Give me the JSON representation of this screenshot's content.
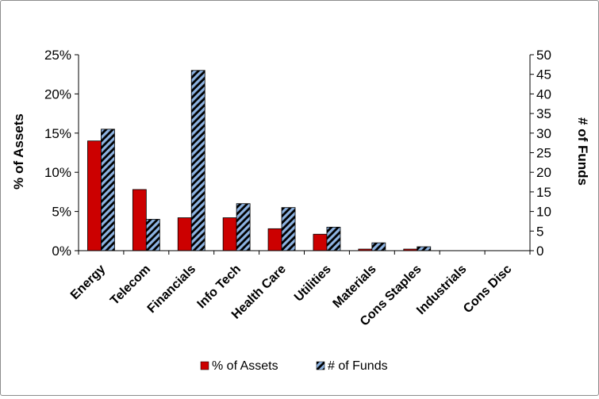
{
  "chart_data": {
    "type": "bar",
    "categories": [
      "Energy",
      "Telecom",
      "Financials",
      "Info Tech",
      "Health Care",
      "Utilities",
      "Materials",
      "Cons Staples",
      "Industrials",
      "Cons Disc"
    ],
    "series": [
      {
        "name": "% of Assets",
        "axis": "left",
        "values": [
          14.0,
          7.8,
          4.2,
          4.2,
          2.8,
          2.1,
          0.2,
          0.2,
          0,
          0
        ],
        "color": "#cc0000",
        "pattern": "solid"
      },
      {
        "name": "# of Funds",
        "axis": "right",
        "values": [
          31,
          8,
          46,
          12,
          11,
          6,
          2,
          1,
          0,
          0
        ],
        "color": "#8db3e2",
        "pattern": "diagonal-stripes"
      }
    ],
    "ylabel": "% of Assets",
    "y2label": "# of Funds",
    "ylim": [
      0,
      25
    ],
    "y2lim": [
      0,
      50
    ],
    "yticks": [
      "0%",
      "5%",
      "10%",
      "15%",
      "20%",
      "25%"
    ],
    "y2ticks": [
      "0",
      "5",
      "10",
      "15",
      "20",
      "25",
      "30",
      "35",
      "40",
      "45",
      "50"
    ],
    "grid": false,
    "legend_position": "bottom"
  }
}
